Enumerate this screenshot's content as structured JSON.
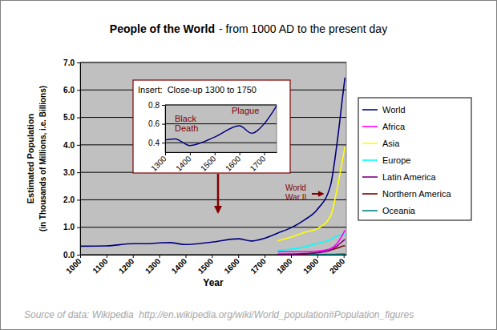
{
  "chart_data": [
    {
      "type": "line",
      "title": "People of the World",
      "subtitle": "- from 1000 AD to the present day",
      "x_label": "Year",
      "y_label": [
        "Estimated Population",
        "(in Thousands of Millions, i.e. Billions)"
      ],
      "x": [
        1000,
        1100,
        1200,
        1250,
        1300,
        1340,
        1400,
        1500,
        1600,
        1650,
        1700,
        1750,
        1800,
        1850,
        1900,
        1950,
        1975,
        2000,
        2005
      ],
      "series": [
        {
          "name": "World",
          "color": "#000080",
          "values": [
            0.31,
            0.32,
            0.4,
            0.4,
            0.43,
            0.44,
            0.37,
            0.46,
            0.58,
            0.5,
            0.6,
            0.79,
            0.98,
            1.26,
            1.65,
            2.52,
            4.07,
            6.07,
            6.45
          ]
        },
        {
          "name": "Africa",
          "color": "#ff00ff",
          "values": [
            null,
            null,
            null,
            null,
            null,
            null,
            null,
            null,
            null,
            null,
            null,
            0.11,
            0.11,
            0.11,
            0.13,
            0.22,
            0.41,
            0.8,
            0.89
          ]
        },
        {
          "name": "Asia",
          "color": "#ffff00",
          "values": [
            null,
            null,
            null,
            null,
            null,
            null,
            null,
            null,
            null,
            null,
            null,
            0.5,
            0.64,
            0.81,
            0.95,
            1.4,
            2.39,
            3.68,
            3.92
          ]
        },
        {
          "name": "Europe",
          "color": "#00ffff",
          "values": [
            null,
            null,
            null,
            null,
            null,
            null,
            null,
            null,
            null,
            null,
            null,
            0.16,
            0.2,
            0.28,
            0.41,
            0.55,
            0.68,
            0.73,
            0.73
          ]
        },
        {
          "name": "Latin America",
          "color": "#800080",
          "values": [
            null,
            null,
            null,
            null,
            null,
            null,
            null,
            null,
            null,
            null,
            null,
            0.02,
            0.02,
            0.04,
            0.07,
            0.17,
            0.32,
            0.52,
            0.56
          ]
        },
        {
          "name": "Northern America",
          "color": "#800000",
          "values": [
            null,
            null,
            null,
            null,
            null,
            null,
            null,
            null,
            null,
            null,
            null,
            0.0,
            0.01,
            0.03,
            0.08,
            0.17,
            0.24,
            0.32,
            0.33
          ]
        },
        {
          "name": "Oceania",
          "color": "#008080",
          "values": [
            null,
            null,
            null,
            null,
            null,
            null,
            null,
            null,
            null,
            null,
            null,
            0.0,
            0.0,
            0.0,
            0.01,
            0.01,
            0.02,
            0.03,
            0.03
          ]
        }
      ],
      "xlim": [
        1000,
        2010
      ],
      "ylim": [
        0,
        7
      ],
      "xticks": [
        1000,
        1100,
        1200,
        1300,
        1400,
        1500,
        1600,
        1700,
        1800,
        1900,
        2000
      ],
      "yticks": [
        {
          "value": 0,
          "label": "0.0"
        },
        {
          "value": 1,
          "label": "1.0"
        },
        {
          "value": 2,
          "label": "2.0"
        },
        {
          "value": 3,
          "label": "3.0"
        },
        {
          "value": 4,
          "label": "4.0"
        },
        {
          "value": 5,
          "label": "5.0"
        },
        {
          "value": 6,
          "label": "6.0"
        },
        {
          "value": 7,
          "label": "7.0"
        }
      ],
      "grid": true,
      "legend": "right",
      "annotations": [
        "World War II"
      ],
      "source": "Source of data: Wikipedia  http://en.wikipedia.org/wiki/World_population#Population_figures"
    },
    {
      "type": "line",
      "title": "Insert:  Close-up 1300 to 1750",
      "x": [
        1300,
        1340,
        1400,
        1500,
        1600,
        1650,
        1700,
        1750
      ],
      "series": [
        {
          "color": "#000080",
          "values": [
            0.43,
            0.44,
            0.37,
            0.46,
            0.58,
            0.5,
            0.6,
            0.79
          ]
        }
      ],
      "xlim": [
        1300,
        1750
      ],
      "ylim": [
        0.3,
        0.8
      ],
      "xticks": [
        1300,
        1400,
        1500,
        1600,
        1700
      ],
      "yticks": [
        0.4,
        0.6,
        0.8
      ],
      "grid": true,
      "annotations": [
        "Black Death",
        "Plague"
      ]
    }
  ]
}
